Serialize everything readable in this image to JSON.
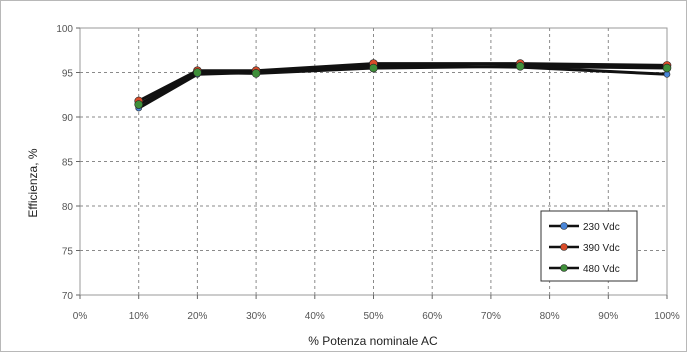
{
  "chart_data": {
    "type": "line",
    "xlabel": "% Potenza nominale AC",
    "ylabel": "Efficienza, %",
    "x": [
      10,
      20,
      30,
      50,
      75,
      100
    ],
    "xlim": [
      0,
      100
    ],
    "ylim": [
      70,
      100
    ],
    "x_ticks": [
      "0%",
      "10%",
      "20%",
      "30%",
      "40%",
      "50%",
      "60%",
      "70%",
      "80%",
      "90%",
      "100%"
    ],
    "y_ticks": [
      "70",
      "75",
      "80",
      "85",
      "90",
      "95",
      "100"
    ],
    "grid": true,
    "legend_position": "bottom-right",
    "series": [
      {
        "name": "230 Vdc",
        "color": "#4a86d8",
        "values": [
          91.0,
          94.8,
          95.0,
          95.8,
          95.6,
          94.8
        ]
      },
      {
        "name": "390 Vdc",
        "color": "#d94c2a",
        "values": [
          91.8,
          95.2,
          95.2,
          96.0,
          96.0,
          95.8
        ]
      },
      {
        "name": "480 Vdc",
        "color": "#3f8f3a",
        "values": [
          91.4,
          95.0,
          94.9,
          95.5,
          95.7,
          95.5
        ]
      }
    ]
  }
}
